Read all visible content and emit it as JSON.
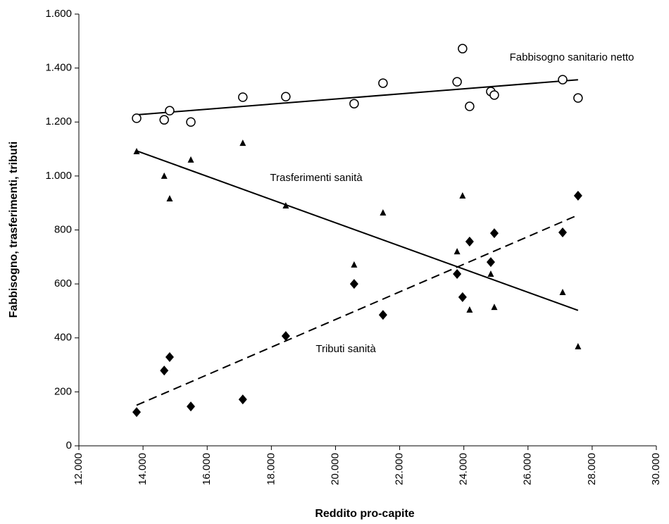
{
  "chart_data": {
    "type": "scatter",
    "x_label": "Reddito pro-capite",
    "y_label": "Fabbisogno, trasferimenti, tributi",
    "x": [
      13800,
      14660,
      14830,
      15490,
      17110,
      18450,
      20580,
      21480,
      23790,
      23960,
      24180,
      24840,
      24950,
      27080,
      27560
    ],
    "series": [
      {
        "name": "Fabbisogno sanitario netto",
        "marker": "circle",
        "color": "#000000",
        "trendline": "solid",
        "values": [
          1214,
          1208,
          1242,
          1200,
          1292,
          1294,
          1268,
          1344,
          1349,
          1472,
          1258,
          1313,
          1300,
          1357,
          1289
        ]
      },
      {
        "name": "Trasferimenti sanità",
        "marker": "triangle",
        "color": "#000000",
        "trendline": "solid",
        "values": [
          1091,
          1000,
          916,
          1060,
          1122,
          890,
          671,
          864,
          720,
          927,
          504,
          637,
          514,
          569,
          368
        ]
      },
      {
        "name": "Tributi sanità",
        "marker": "diamond",
        "color": "#000000",
        "trendline": "dashed",
        "values": [
          125,
          279,
          329,
          146,
          172,
          407,
          600,
          485,
          637,
          551,
          757,
          681,
          788,
          791,
          927
        ]
      }
    ],
    "xlim": [
      12000,
      30000
    ],
    "xticks": [
      {
        "value": 12000,
        "label": "12.000"
      },
      {
        "value": 14000,
        "label": "14.000"
      },
      {
        "value": 16000,
        "label": "16.000"
      },
      {
        "value": 18000,
        "label": "18.000"
      },
      {
        "value": 20000,
        "label": "20.000"
      },
      {
        "value": 22000,
        "label": "22.000"
      },
      {
        "value": 24000,
        "label": "24.000"
      },
      {
        "value": 26000,
        "label": "26.000"
      },
      {
        "value": 28000,
        "label": "28.000"
      },
      {
        "value": 30000,
        "label": "30.000"
      }
    ],
    "ylim": [
      0,
      1600
    ],
    "yticks": [
      0,
      200,
      400,
      600,
      800,
      {
        "value": 1000,
        "label": "1.000"
      },
      {
        "value": 1200,
        "label": "1.200"
      },
      {
        "value": 1400,
        "label": "1.400"
      },
      {
        "value": 1600,
        "label": "1.600"
      }
    ],
    "grid": false
  }
}
